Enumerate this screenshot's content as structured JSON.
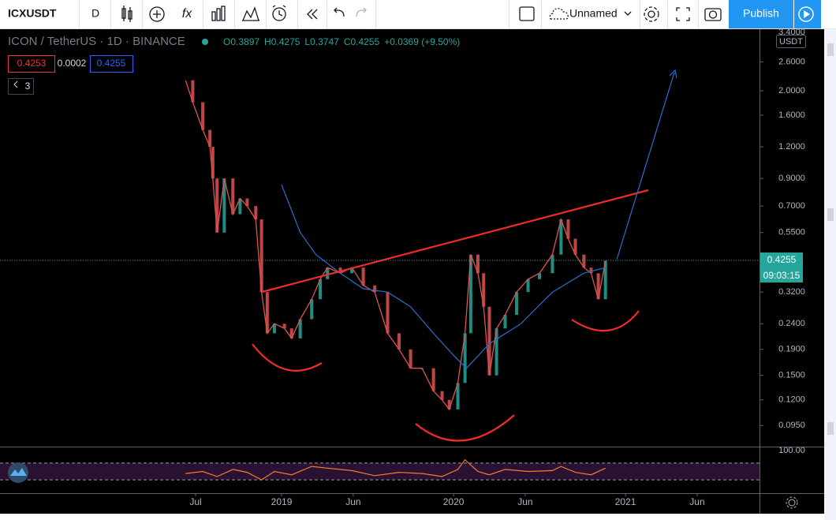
{
  "toolbar": {
    "symbol": "ICXUSDT",
    "interval": "D",
    "layout_name": "Unnamed",
    "publish": "Publish"
  },
  "legend": {
    "title": "ICON / TetherUS · 1D · BINANCE",
    "ohlc": [
      "O0.3897",
      "H0.4275",
      "L0.3747",
      "C0.4255",
      "+0.0369 (+9.50%)"
    ],
    "bid": "0.4253",
    "spread": "0.0002",
    "ask": "0.4255",
    "indicators_count": "3"
  },
  "price_axis": {
    "currency": "USDT",
    "top_cut": "3.4000",
    "last_price": "0.4255",
    "countdown": "09:03:15",
    "rsi_top": "100.00"
  },
  "chart_data": {
    "type": "candlestick",
    "log_scale": true,
    "ylim": [
      0.079,
      3.5
    ],
    "yticks": [
      {
        "value": 2.6,
        "label": "2.6000"
      },
      {
        "value": 2.0,
        "label": "2.0000"
      },
      {
        "value": 1.6,
        "label": "1.6000"
      },
      {
        "value": 1.2,
        "label": "1.2000"
      },
      {
        "value": 0.9,
        "label": "0.9000"
      },
      {
        "value": 0.7,
        "label": "0.7000"
      },
      {
        "value": 0.55,
        "label": "0.5500"
      },
      {
        "value": 0.32,
        "label": "0.3200"
      },
      {
        "value": 0.24,
        "label": "0.2400"
      },
      {
        "value": 0.19,
        "label": "0.1900"
      },
      {
        "value": 0.15,
        "label": "0.1500"
      },
      {
        "value": 0.12,
        "label": "0.1200"
      },
      {
        "value": 0.095,
        "label": "0.0950"
      }
    ],
    "xlim": [
      -7.54,
      45.35
    ],
    "xticks": [
      {
        "value": 6,
        "label": "Jul"
      },
      {
        "value": 12,
        "label": "2019"
      },
      {
        "value": 17,
        "label": "Jun"
      },
      {
        "value": 24,
        "label": "2020"
      },
      {
        "value": 29,
        "label": "Jun"
      },
      {
        "value": 36,
        "label": "2021"
      },
      {
        "value": 41,
        "label": "Jun"
      }
    ],
    "series": [
      {
        "color": "#e05252",
        "x": [
          5.3,
          5.8,
          6.5,
          7.0,
          7.2,
          7.5,
          8.0,
          8.6,
          9.1,
          9.6,
          10.2,
          10.6,
          11.0,
          11.5,
          12.2,
          12.7,
          13.3,
          14.1,
          14.7,
          15.2,
          16.1,
          16.9,
          17.7,
          18.5,
          19.4,
          20.2,
          21.0,
          21.8,
          22.6,
          23.2,
          23.7,
          24.3,
          24.8,
          25.2,
          25.7,
          26.1,
          26.5,
          27.0,
          27.6,
          28.4,
          29.2,
          30.0,
          30.9,
          31.5,
          32.0,
          32.5,
          33.1,
          33.6,
          34.1,
          34.6
        ],
        "values": [
          2.2,
          1.8,
          1.4,
          1.2,
          0.9,
          0.55,
          0.9,
          0.65,
          0.75,
          0.7,
          0.62,
          0.32,
          0.22,
          0.24,
          0.23,
          0.21,
          0.25,
          0.3,
          0.36,
          0.4,
          0.38,
          0.4,
          0.34,
          0.32,
          0.22,
          0.19,
          0.16,
          0.16,
          0.13,
          0.12,
          0.11,
          0.14,
          0.22,
          0.45,
          0.38,
          0.28,
          0.15,
          0.23,
          0.26,
          0.32,
          0.36,
          0.38,
          0.45,
          0.62,
          0.52,
          0.45,
          0.4,
          0.38,
          0.3,
          0.4255
        ]
      },
      {
        "color": "#2a6fc9",
        "x": [
          12.0,
          13.3,
          14.4,
          16.1,
          17.7,
          19.4,
          21.0,
          22.6,
          24.0,
          24.9,
          26.5,
          28.7,
          30.9,
          33.1,
          34.6
        ],
        "values": [
          0.85,
          0.55,
          0.45,
          0.38,
          0.33,
          0.32,
          0.28,
          0.22,
          0.18,
          0.16,
          0.2,
          0.24,
          0.32,
          0.38,
          0.4
        ]
      }
    ]
  },
  "rsi": {
    "ylim": [
      0,
      100
    ],
    "levels": [
      70,
      30
    ],
    "x": [
      5.3,
      6.5,
      7.5,
      8.6,
      9.6,
      10.6,
      11.5,
      12.7,
      14.1,
      15.2,
      16.9,
      18.5,
      20.2,
      21.8,
      23.2,
      24.3,
      24.8,
      25.7,
      26.5,
      27.6,
      29.2,
      30.9,
      31.5,
      32.5,
      33.6,
      34.6
    ],
    "values": [
      45,
      50,
      38,
      55,
      48,
      30,
      50,
      42,
      62,
      58,
      52,
      40,
      48,
      45,
      38,
      55,
      78,
      50,
      42,
      55,
      50,
      52,
      62,
      48,
      42,
      58
    ]
  }
}
